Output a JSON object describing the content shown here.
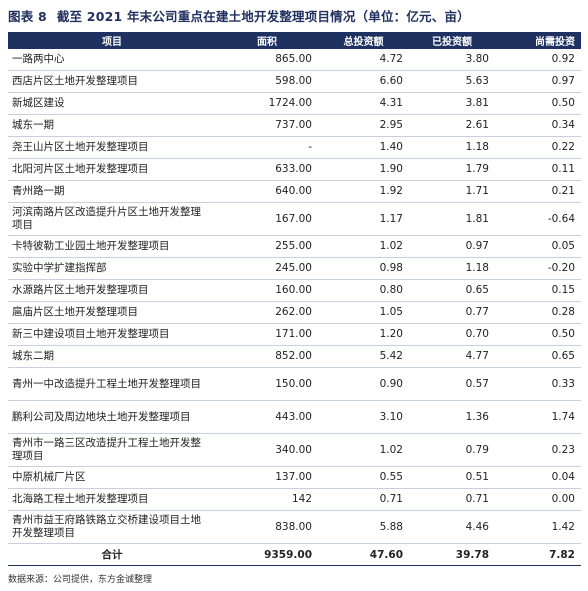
{
  "title": {
    "number": "图表 8",
    "text": "截至 2021 年末公司重点在建土地开发整理项目情况（单位：亿元、亩）"
  },
  "headers": [
    "项目",
    "面积",
    "总投资额",
    "已投资额",
    "尚需投资"
  ],
  "rows": [
    [
      "一路两中心",
      "865.00",
      "4.72",
      "3.80",
      "0.92"
    ],
    [
      "西店片区土地开发整理项目",
      "598.00",
      "6.60",
      "5.63",
      "0.97"
    ],
    [
      "新城区建设",
      "1724.00",
      "4.31",
      "3.81",
      "0.50"
    ],
    [
      "城东一期",
      "737.00",
      "2.95",
      "2.61",
      "0.34"
    ],
    [
      "尧王山片区土地开发整理项目",
      "-",
      "1.40",
      "1.18",
      "0.22"
    ],
    [
      "北阳河片区土地开发整理项目",
      "633.00",
      "1.90",
      "1.79",
      "0.11"
    ],
    [
      "青州路一期",
      "640.00",
      "1.92",
      "1.71",
      "0.21"
    ],
    [
      "河滨南路片区改造提升片区土地开发整理项目",
      "167.00",
      "1.17",
      "1.81",
      "-0.64"
    ],
    [
      "卡特彼勒工业园土地开发整理项目",
      "255.00",
      "1.02",
      "0.97",
      "0.05"
    ],
    [
      "实验中学扩建指挥部",
      "245.00",
      "0.98",
      "1.18",
      "-0.20"
    ],
    [
      "水源路片区土地开发整理项目",
      "160.00",
      "0.80",
      "0.65",
      "0.15"
    ],
    [
      "扈庙片区土地开发整理项目",
      "262.00",
      "1.05",
      "0.77",
      "0.28"
    ],
    [
      "新三中建设项目土地开发整理项目",
      "171.00",
      "1.20",
      "0.70",
      "0.50"
    ],
    [
      "城东二期",
      "852.00",
      "5.42",
      "4.77",
      "0.65"
    ],
    [
      "青州一中改造提升工程土地开发整理项目",
      "150.00",
      "0.90",
      "0.57",
      "0.33"
    ],
    [
      "鹏利公司及周边地块土地开发整理项目",
      "443.00",
      "3.10",
      "1.36",
      "1.74"
    ],
    [
      "青州市一路三区改造提升工程土地开发整理项目",
      "340.00",
      "1.02",
      "0.79",
      "0.23"
    ],
    [
      "中原机械厂片区",
      "137.00",
      "0.55",
      "0.51",
      "0.04"
    ],
    [
      "北海路工程土地开发整理项目",
      "142",
      "0.71",
      "0.71",
      "0.00"
    ],
    [
      "青州市益王府路铁路立交桥建设项目土地开发整理项目",
      "838.00",
      "5.88",
      "4.46",
      "1.42"
    ]
  ],
  "total": [
    "合计",
    "9359.00",
    "47.60",
    "39.78",
    "7.82"
  ],
  "source": "数据来源：公司提供，东方金诚整理"
}
